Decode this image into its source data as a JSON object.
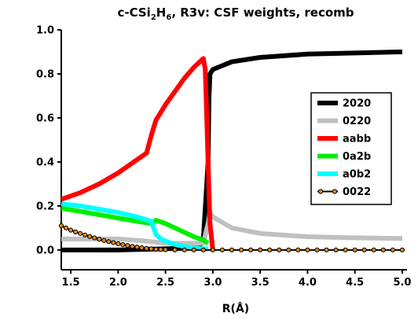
{
  "chart_data": {
    "type": "line",
    "title": {
      "prefix": "c-CSi",
      "sub1": "2",
      "mid": "H",
      "sub2": "6",
      "suffix": ", R3v: CSF weights, recomb"
    },
    "xlabel": "R(Å)",
    "ylabel": "",
    "xlim": [
      1.4,
      5.05
    ],
    "ylim": [
      -0.09,
      1.0
    ],
    "xticks": [
      "1.5",
      "2.0",
      "2.5",
      "3.0",
      "3.5",
      "4.0",
      "4.5",
      "5.0"
    ],
    "yticks": [
      "0.0",
      "0.2",
      "0.4",
      "0.6",
      "0.8",
      "1.0"
    ],
    "grid": false,
    "legend_position": "right",
    "series": [
      {
        "name": "2020",
        "color": "#000000",
        "x": [
          1.4,
          2.0,
          2.5,
          2.85,
          2.9,
          2.95,
          2.96,
          2.97,
          3.0,
          3.2,
          3.5,
          4.0,
          4.5,
          5.0
        ],
        "y": [
          0.0,
          0.0,
          0.005,
          0.01,
          0.05,
          0.4,
          0.7,
          0.8,
          0.82,
          0.855,
          0.875,
          0.89,
          0.895,
          0.9
        ]
      },
      {
        "name": "0220",
        "color": "#c0c0c0",
        "x": [
          1.4,
          2.0,
          2.3,
          2.5,
          2.9,
          2.95,
          2.97,
          3.0,
          3.2,
          3.5,
          4.0,
          4.5,
          5.0
        ],
        "y": [
          0.05,
          0.05,
          0.04,
          0.03,
          0.03,
          0.12,
          0.17,
          0.15,
          0.1,
          0.075,
          0.06,
          0.055,
          0.052
        ]
      },
      {
        "name": "aabb",
        "color": "#ff0000",
        "x": [
          1.4,
          1.6,
          1.8,
          2.0,
          2.2,
          2.3,
          2.35,
          2.4,
          2.5,
          2.6,
          2.7,
          2.8,
          2.9,
          2.92,
          2.95,
          2.97,
          3.0
        ],
        "y": [
          0.23,
          0.26,
          0.3,
          0.35,
          0.41,
          0.44,
          0.52,
          0.59,
          0.66,
          0.72,
          0.78,
          0.83,
          0.87,
          0.82,
          0.4,
          0.12,
          0.0
        ]
      },
      {
        "name": "0a2b",
        "color": "#00ee00",
        "x": [
          1.4,
          1.6,
          1.8,
          2.0,
          2.2,
          2.35,
          2.4,
          2.5,
          2.6,
          2.7,
          2.8,
          2.9,
          2.95
        ],
        "y": [
          0.19,
          0.175,
          0.16,
          0.145,
          0.13,
          0.12,
          0.135,
          0.12,
          0.1,
          0.08,
          0.06,
          0.045,
          0.03
        ]
      },
      {
        "name": "a0b2",
        "color": "#00ffff",
        "x": [
          1.4,
          1.6,
          1.8,
          2.0,
          2.2,
          2.35,
          2.4,
          2.45,
          2.5,
          2.6,
          2.7,
          2.8,
          2.9,
          2.95
        ],
        "y": [
          0.21,
          0.2,
          0.185,
          0.17,
          0.15,
          0.13,
          0.07,
          0.05,
          0.04,
          0.025,
          0.015,
          0.01,
          0.005,
          0.005
        ]
      },
      {
        "name": "0022",
        "color": "#000000",
        "marker_color": "#e08820",
        "x": [
          1.4,
          1.45,
          1.5,
          1.55,
          1.6,
          1.65,
          1.7,
          1.75,
          1.8,
          1.85,
          1.9,
          1.95,
          2.0,
          2.05,
          2.1,
          2.15,
          2.2,
          2.25,
          2.3,
          2.35,
          2.4,
          2.45,
          2.5,
          2.6,
          2.7,
          2.8,
          2.9,
          3.0,
          3.1,
          3.2,
          3.3,
          3.4,
          3.5,
          3.6,
          3.7,
          3.8,
          3.9,
          4.0,
          4.1,
          4.2,
          4.3,
          4.4,
          4.5,
          4.6,
          4.7,
          4.8,
          4.9,
          5.0
        ],
        "y": [
          0.11,
          0.1,
          0.09,
          0.082,
          0.075,
          0.068,
          0.061,
          0.055,
          0.049,
          0.043,
          0.038,
          0.033,
          0.028,
          0.024,
          0.02,
          0.016,
          0.013,
          0.01,
          0.007,
          0.005,
          0.003,
          0.002,
          0.001,
          0.0,
          0.0,
          0.0,
          0.0,
          0.0,
          0.0,
          0.0,
          0.0,
          0.0,
          0.0,
          0.0,
          0.0,
          0.0,
          0.0,
          0.0,
          0.0,
          0.0,
          0.0,
          0.0,
          0.0,
          0.0,
          0.0,
          0.0,
          0.0,
          0.0
        ]
      }
    ]
  }
}
